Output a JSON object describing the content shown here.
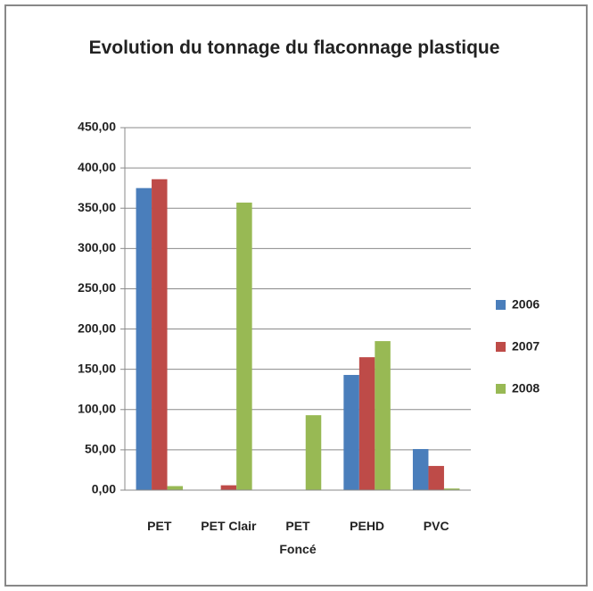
{
  "chart_data": {
    "type": "bar",
    "title": "Evolution du tonnage du flaconnage plastique",
    "categories": [
      "PET",
      "PET Clair",
      "PET Foncé",
      "PEHD",
      "PVC"
    ],
    "series": [
      {
        "name": "2006",
        "color": "#4a7ebb",
        "values": [
          375,
          0,
          0,
          143,
          51
        ]
      },
      {
        "name": "2007",
        "color": "#be4b48",
        "values": [
          386,
          6,
          0,
          165,
          30
        ]
      },
      {
        "name": "2008",
        "color": "#98b954",
        "values": [
          5,
          357,
          93,
          185,
          2
        ]
      }
    ],
    "ylim": [
      0,
      450
    ],
    "yticks": [
      {
        "value": 0,
        "label": "0,00"
      },
      {
        "value": 50,
        "label": "50,00"
      },
      {
        "value": 100,
        "label": "100,00"
      },
      {
        "value": 150,
        "label": "150,00"
      },
      {
        "value": 200,
        "label": "200,00"
      },
      {
        "value": 250,
        "label": "250,00"
      },
      {
        "value": 300,
        "label": "300,00"
      },
      {
        "value": 350,
        "label": "350,00"
      },
      {
        "value": 400,
        "label": "400,00"
      },
      {
        "value": 450,
        "label": "450,00"
      }
    ],
    "grid": true,
    "legend": "right"
  }
}
